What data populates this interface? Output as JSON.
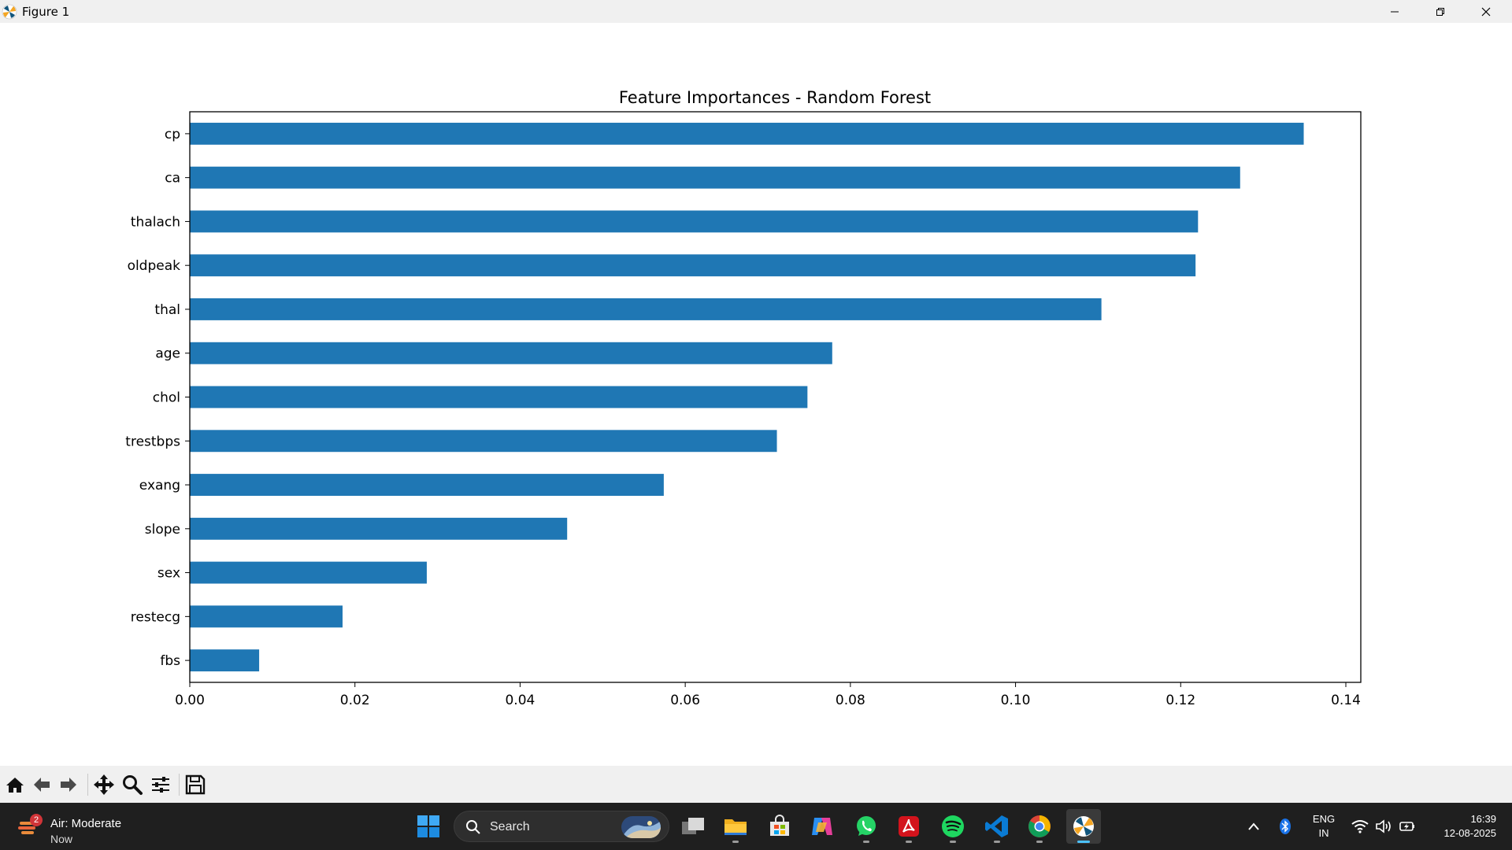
{
  "window": {
    "title": "Figure 1",
    "controls": [
      "minimize",
      "maximize",
      "close"
    ]
  },
  "chart_data": {
    "type": "bar",
    "orientation": "horizontal",
    "title": "Feature Importances - Random Forest",
    "xlabel": "",
    "ylabel": "",
    "categories": [
      "cp",
      "ca",
      "thalach",
      "oldpeak",
      "thal",
      "age",
      "chol",
      "trestbps",
      "exang",
      "slope",
      "sex",
      "restecg",
      "fbs"
    ],
    "values": [
      0.1349,
      0.1272,
      0.1221,
      0.1218,
      0.1104,
      0.0778,
      0.0748,
      0.0711,
      0.0574,
      0.0457,
      0.0287,
      0.0185,
      0.0084
    ],
    "xlim": [
      0,
      0.142
    ],
    "xticks": [
      "0.00",
      "0.02",
      "0.04",
      "0.06",
      "0.08",
      "0.10",
      "0.12",
      "0.14"
    ],
    "xtick_values": [
      0,
      0.02,
      0.04,
      0.06,
      0.08,
      0.1,
      0.12,
      0.14
    ],
    "bar_color": "#1f77b4",
    "grid": false,
    "legend": "none"
  },
  "toolbar": {
    "buttons": [
      {
        "name": "home",
        "icon": "home-icon"
      },
      {
        "name": "back",
        "icon": "arrow-left-icon"
      },
      {
        "name": "forward",
        "icon": "arrow-right-icon"
      },
      {
        "name": "pan",
        "icon": "move-icon"
      },
      {
        "name": "zoom",
        "icon": "magnifier-icon"
      },
      {
        "name": "configure-subplots",
        "icon": "sliders-icon"
      },
      {
        "name": "save",
        "icon": "floppy-icon"
      }
    ]
  },
  "taskbar": {
    "weather": {
      "badge": "2",
      "title": "Air: Moderate",
      "subtitle": "Now"
    },
    "search_placeholder": "Search",
    "apps": [
      "start",
      "task-view",
      "file-explorer",
      "microsoft-store",
      "copilot",
      "whatsapp",
      "acrobat",
      "spotify",
      "vscode",
      "chrome",
      "matplotlib-figure"
    ],
    "tray": {
      "language_line1": "ENG",
      "language_line2": "IN",
      "time": "16:39",
      "date": "12-08-2025"
    }
  },
  "colors": {
    "bar": "#1f77b4",
    "taskbar": "#1f1f1f",
    "toolbar": "#f0f0f0",
    "accent": "#4cc2ff"
  }
}
